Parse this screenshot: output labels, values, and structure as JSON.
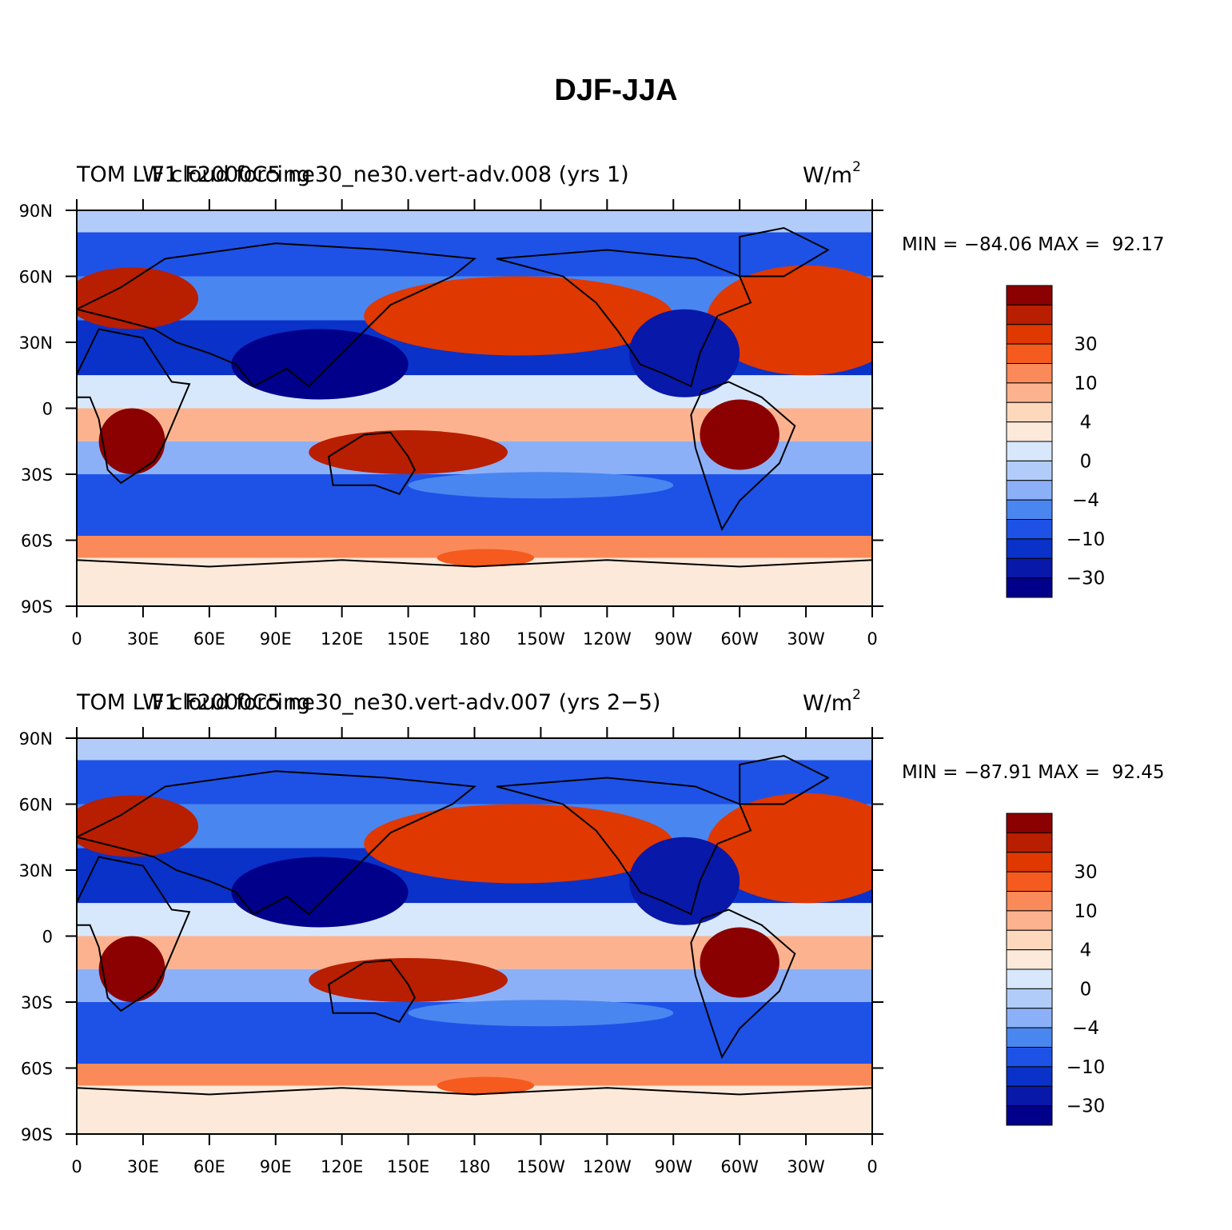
{
  "title": "DJF-JJA",
  "lat_labels": [
    "90N",
    "60N",
    "30N",
    "0",
    "30S",
    "60S",
    "90S"
  ],
  "lon_labels": [
    "0",
    "30E",
    "60E",
    "90E",
    "120E",
    "150E",
    "180",
    "150W",
    "120W",
    "90W",
    "60W",
    "30W",
    "0"
  ],
  "colorbar": {
    "labels": [
      "30",
      "10",
      "4",
      "0",
      "−4",
      "−10",
      "−30"
    ],
    "colors": [
      "#8b0000",
      "#b81e00",
      "#df3800",
      "#f55a1e",
      "#fa8a5a",
      "#fcb28e",
      "#fdd8bd",
      "#fde9da",
      "#d8e8fc",
      "#b2ccfa",
      "#8cb0f8",
      "#4a86f0",
      "#1e52e6",
      "#0a32c8",
      "#0818a8",
      "#00008b"
    ]
  },
  "panels": [
    {
      "title_left": "TOM LW cloud forcing",
      "title_center": "F1 F2000C5 ne30_ne30.vert-adv.008 (yrs 1)",
      "units": "W/m",
      "units_sup": "2",
      "min_max": "MIN = −84.06 MAX =  92.17"
    },
    {
      "title_left": "TOM LW cloud forcing",
      "title_center": "F1 F2000C5 ne30_ne30.vert-adv.007 (yrs 2−5)",
      "units": "W/m",
      "units_sup": "2",
      "min_max": "MIN = −87.91 MAX =  92.45"
    }
  ],
  "colors": {
    "positive": "#e23a0a",
    "negative": "#0a32c8"
  }
}
